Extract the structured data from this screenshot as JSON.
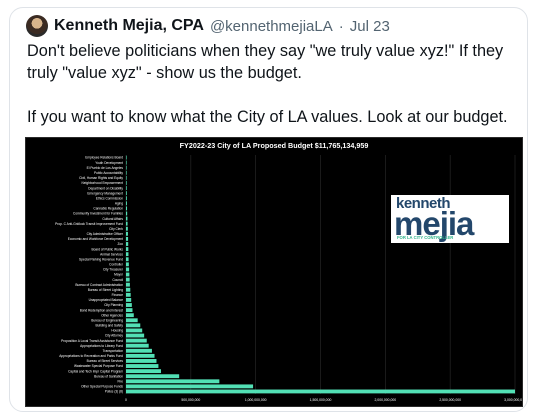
{
  "tweet": {
    "author_name": "Kenneth Mejia, CPA",
    "handle": "@kennethmejiaLA",
    "separator": "·",
    "date": "Jul 23",
    "line1": "Don't believe politicians when they say \"we truly value xyz!\" If they truly \"value xyz\" - show us the budget.",
    "line2": "If you want to know what the City of LA values. Look at our budget."
  },
  "logo": {
    "line1": "kenneth",
    "line2": "mejia",
    "tagline": "FOR LA CITY CONTROLLER"
  },
  "chart_data": {
    "type": "bar",
    "orientation": "horizontal",
    "title": "FY2022-23 City of LA Proposed Budget $11,765,134,959",
    "colors": {
      "bar": "#52e0b5",
      "background": "#000000",
      "text": "#ffffff",
      "grid": "#2c2c2c"
    },
    "xlim": [
      0,
      3000000000
    ],
    "xticks": [
      0,
      500000000,
      1000000000,
      1500000000,
      2000000000,
      2500000000,
      3000000000
    ],
    "xtick_labels": [
      "0",
      "500,000,000",
      "1,000,000,000",
      "1,500,000,000",
      "2,000,000,000",
      "2,500,000,000",
      "3,000,000,000"
    ],
    "categories": [
      "Employee Relations Board",
      "Youth Development",
      "El Pueblo de Los Angeles",
      "Public Accountability",
      "Civil, Human Rights and Equity",
      "Neighborhood Empowerment",
      "Department on Disability",
      "Emergency Management",
      "Ethics Commission",
      "Aging",
      "Cannabis Regulation",
      "Community Investment for Families",
      "Cultural Affairs",
      "Prop. C Anti-Gridlock Transit Improvement Fund",
      "City Clerk",
      "City Administrative Officer",
      "Economic and Workforce Development",
      "Zoo",
      "Board of Public Works",
      "Animal Services",
      "Special Parking Revenue Fund",
      "Controller",
      "City Treasurer",
      "Mayor",
      "Council",
      "Bureau of Contract Administration",
      "Bureau of Street Lighting",
      "Finance",
      "Unappropriated Balance",
      "City Planning",
      "Bond Redemption and Interest",
      "Other Agencies",
      "Bureau of Engineering",
      "Building and Safety",
      "Housing",
      "City Attorney",
      "Proposition A Local Transit Assistance Fund",
      "Appropriations to Library Fund",
      "Transportation",
      "Appropriations to Recreation and Parks Fund",
      "Bureau of Street Services",
      "Wastewater Special Purpose Fund",
      "Capital and Tech Impr Capital Program",
      "Bureau of Sanitation",
      "Fire",
      "Other Special Purpose Funds",
      "Police (3) (8)"
    ],
    "values": [
      2000000,
      3000000,
      3500000,
      4000000,
      4500000,
      5000000,
      5500000,
      6000000,
      6500000,
      7000000,
      8000000,
      9000000,
      11000000,
      12000000,
      14000000,
      15000000,
      16000000,
      17000000,
      18000000,
      19000000,
      20000000,
      22000000,
      24000000,
      26000000,
      28000000,
      30000000,
      33000000,
      36000000,
      40000000,
      45000000,
      50000000,
      60000000,
      90000000,
      110000000,
      125000000,
      140000000,
      160000000,
      175000000,
      200000000,
      220000000,
      235000000,
      250000000,
      270000000,
      410000000,
      720000000,
      980000000,
      3000000000
    ]
  }
}
